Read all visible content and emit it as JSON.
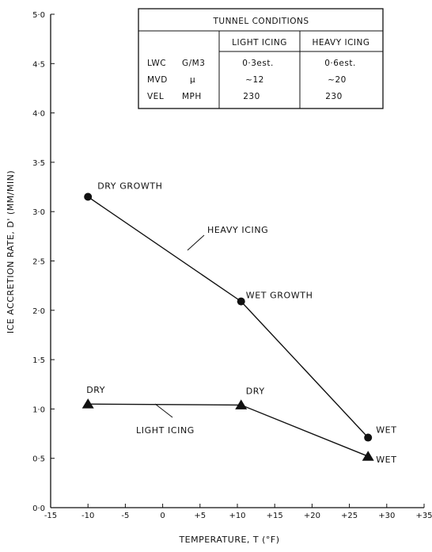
{
  "chart_data": {
    "type": "line",
    "xlabel": "TEMPERATURE, T (°F)",
    "ylabel": "ICE ACCRETION RATE, D' (MM/MIN)",
    "xlim": [
      -15,
      35
    ],
    "ylim": [
      0,
      5
    ],
    "x_ticks": [
      -15,
      -10,
      -5,
      0,
      5,
      10,
      15,
      20,
      25,
      30,
      35
    ],
    "x_tick_labels": [
      "-15",
      "-10",
      "-5",
      "0",
      "+5",
      "+10",
      "+15",
      "+20",
      "+25",
      "+30",
      "+35"
    ],
    "y_ticks": [
      0,
      0.5,
      1,
      1.5,
      2,
      2.5,
      3,
      3.5,
      4,
      4.5,
      5
    ],
    "y_tick_labels": [
      "0·0",
      "0·5",
      "1·0",
      "1·5",
      "2·0",
      "2·5",
      "3·0",
      "3·5",
      "4·0",
      "4·5",
      "5·0"
    ],
    "grid": false,
    "series": [
      {
        "name": "HEAVY ICING",
        "marker": "circle",
        "x": [
          -10,
          10.5,
          27.5
        ],
        "y": [
          3.15,
          2.09,
          0.71
        ],
        "point_labels": [
          "DRY GROWTH",
          "WET GROWTH",
          "WET"
        ]
      },
      {
        "name": "LIGHT ICING",
        "marker": "triangle",
        "x": [
          -10,
          10.5,
          27.5
        ],
        "y": [
          1.05,
          1.04,
          0.52
        ],
        "point_labels": [
          "DRY",
          "DRY",
          "WET"
        ]
      }
    ],
    "table": {
      "title": "TUNNEL  CONDITIONS",
      "columns": [
        "LIGHT ICING",
        "HEAVY ICING"
      ],
      "rows": [
        {
          "param": "LWC",
          "unit": "G/M3",
          "values": [
            "0·3est.",
            "0·6est."
          ]
        },
        {
          "param": "MVD",
          "unit": "μ",
          "values": [
            "~12",
            "~20"
          ]
        },
        {
          "param": "VEL",
          "unit": "MPH",
          "values": [
            "230",
            "230"
          ]
        }
      ]
    }
  }
}
